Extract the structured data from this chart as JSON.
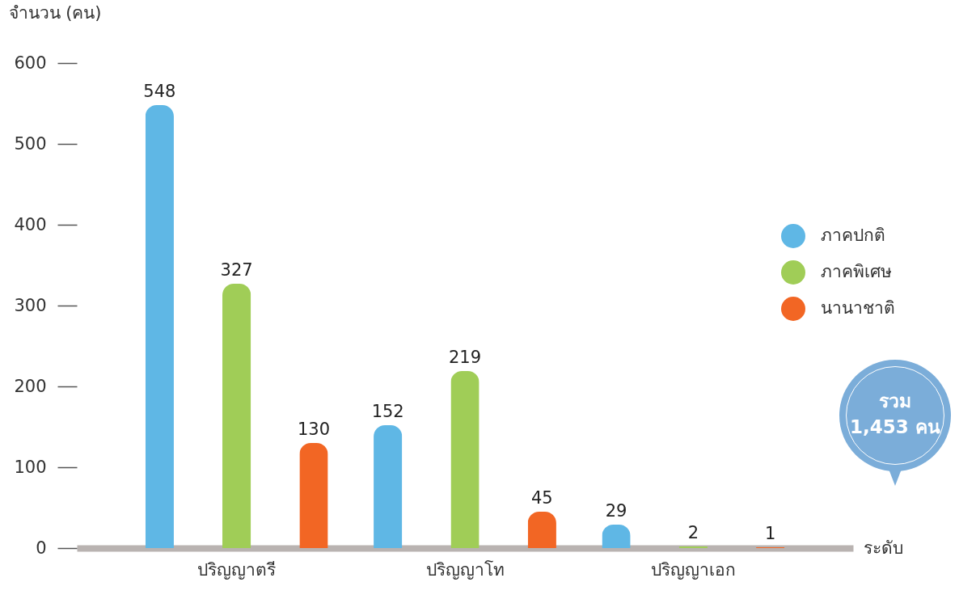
{
  "chart_data": {
    "type": "bar",
    "xlabel": "ระดับ",
    "ylabel": "จำนวน (คน)",
    "categories": [
      "ปริญญาตรี",
      "ปริญญาโท",
      "ปริญญาเอก"
    ],
    "series": [
      {
        "name": "ภาคปกติ",
        "color": "#5fb7e5",
        "values": [
          548,
          152,
          29
        ]
      },
      {
        "name": "ภาคพิเศษ",
        "color": "#a0cd57",
        "values": [
          327,
          219,
          2
        ]
      },
      {
        "name": "นานาชาติ",
        "color": "#f26624",
        "values": [
          130,
          45,
          1
        ]
      }
    ],
    "ylim": [
      0,
      600
    ],
    "yticks": [
      0,
      100,
      200,
      300,
      400,
      500,
      600
    ],
    "grid": false,
    "legend": "right",
    "data_labels": true,
    "annotations": [
      "รวม 1,453 คน"
    ]
  }
}
